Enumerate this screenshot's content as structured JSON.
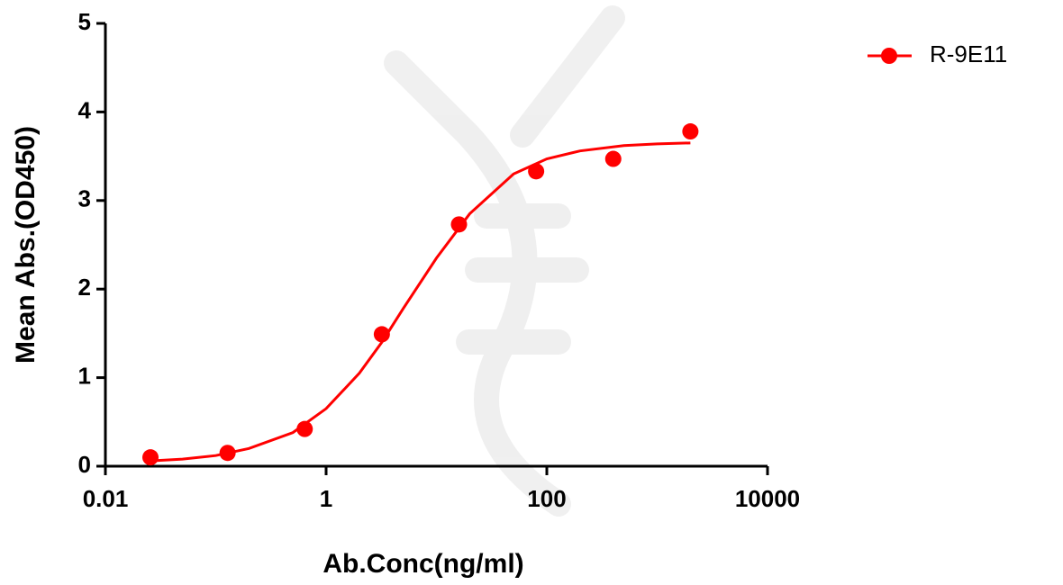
{
  "chart_data": {
    "type": "scatter",
    "x_label": "Ab.Conc(ng/ml)",
    "y_label": "Mean Abs.(OD450)",
    "log_x": true,
    "xlim": [
      0.01,
      10000
    ],
    "xticks": [
      0.01,
      1,
      100,
      10000
    ],
    "ylim": [
      0,
      5
    ],
    "yticks": [
      0,
      1,
      2,
      3,
      4,
      5
    ],
    "legend": "top-right",
    "series": [
      {
        "name": "R-9E11",
        "color": "#ff0000",
        "x": [
          0.0256,
          0.128,
          0.64,
          3.2,
          16,
          80,
          400,
          2000
        ],
        "values": [
          0.1,
          0.15,
          0.42,
          1.49,
          2.73,
          3.33,
          3.47,
          3.78
        ],
        "fit": {
          "x": [
            0.0256,
            0.05,
            0.1,
            0.2,
            0.5,
            1,
            2,
            3.2,
            5,
            10,
            20,
            50,
            100,
            200,
            500,
            1000,
            2000
          ],
          "values": [
            0.06,
            0.08,
            0.12,
            0.2,
            0.38,
            0.65,
            1.05,
            1.4,
            1.78,
            2.35,
            2.85,
            3.3,
            3.47,
            3.56,
            3.62,
            3.64,
            3.65
          ]
        }
      }
    ]
  }
}
